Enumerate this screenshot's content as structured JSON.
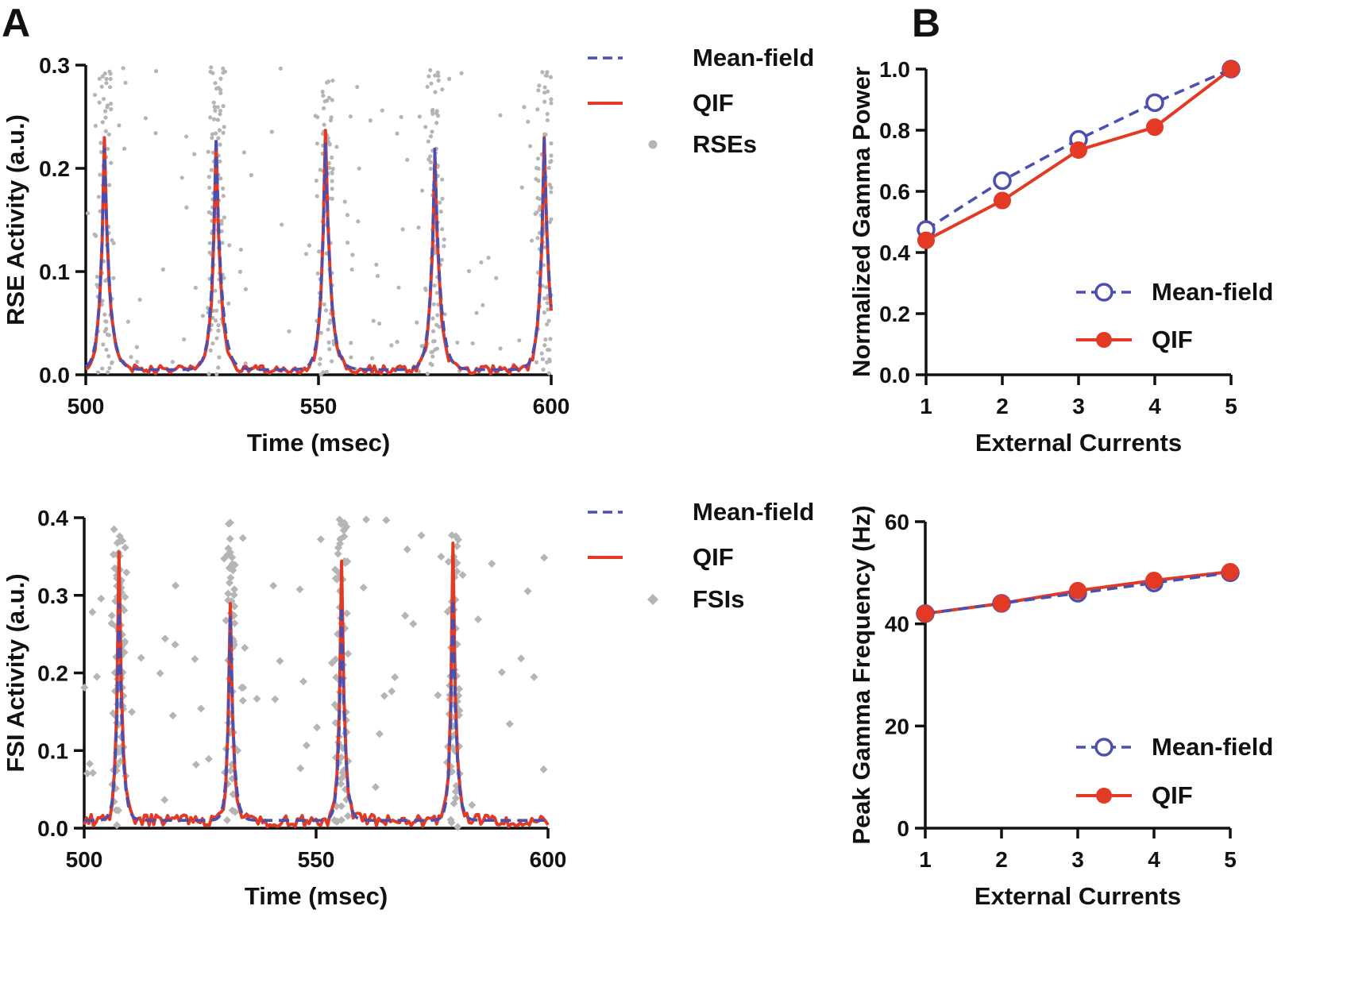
{
  "panel_labels": [
    "A",
    "B"
  ],
  "colors": {
    "meanfield": "#4A4FB0",
    "qif": "#E23A24",
    "spikes": "#B5B5B5",
    "axis": "#111111"
  },
  "chart_data": [
    {
      "id": "rse",
      "type": "line",
      "title": "",
      "xlabel": "Time (msec)",
      "ylabel": "RSE Activity (a.u.)",
      "xlim": [
        500,
        600
      ],
      "ylim": [
        0,
        0.3
      ],
      "xticks": [
        "500",
        "550",
        "600"
      ],
      "yticks": [
        "0.0",
        "0.1",
        "0.2",
        "0.3"
      ],
      "legend": [
        "Mean-field",
        "QIF",
        "RSEs"
      ],
      "legend_position": "right",
      "peaks": [
        504,
        528,
        551.5,
        575,
        598.5
      ],
      "peak_heights_meanfield": [
        0.215,
        0.225,
        0.22,
        0.215,
        0.225
      ],
      "peak_heights_qif": [
        0.225,
        0.22,
        0.235,
        0.21,
        0.225
      ],
      "baseline": 0.005,
      "spike_marker": "circle"
    },
    {
      "id": "fsi",
      "type": "line",
      "title": "",
      "xlabel": "Time (msec)",
      "ylabel": "FSI Activity (a.u.)",
      "xlim": [
        500,
        600
      ],
      "ylim": [
        0,
        0.4
      ],
      "xticks": [
        "500",
        "550",
        "600"
      ],
      "yticks": [
        "0.0",
        "0.1",
        "0.2",
        "0.3",
        "0.4"
      ],
      "legend": [
        "Mean-field",
        "QIF",
        "FSIs"
      ],
      "legend_position": "right",
      "peaks": [
        507.5,
        531.5,
        555.5,
        579.5
      ],
      "peak_heights_meanfield": [
        0.28,
        0.265,
        0.275,
        0.285
      ],
      "peak_heights_qif": [
        0.34,
        0.275,
        0.33,
        0.355
      ],
      "baseline": 0.01,
      "spike_marker": "diamond"
    },
    {
      "id": "power",
      "type": "line",
      "title": "",
      "xlabel": "External Currents",
      "ylabel": "Normalized Gamma Power",
      "x": [
        1,
        2,
        3,
        4,
        5
      ],
      "xlim": [
        1,
        5
      ],
      "ylim": [
        0,
        1.0
      ],
      "xticks": [
        "1",
        "2",
        "3",
        "4",
        "5"
      ],
      "yticks": [
        "0.0",
        "0.2",
        "0.4",
        "0.6",
        "0.8",
        "1.0"
      ],
      "series": [
        {
          "name": "Mean-field",
          "values": [
            0.475,
            0.635,
            0.77,
            0.89,
            1.0
          ]
        },
        {
          "name": "QIF",
          "values": [
            0.44,
            0.57,
            0.735,
            0.81,
            1.0
          ]
        }
      ],
      "legend_position": "bottom-right"
    },
    {
      "id": "freq",
      "type": "line",
      "title": "",
      "xlabel": "External Currents",
      "ylabel": "Peak Gamma Frequency (Hz)",
      "x": [
        1,
        2,
        3,
        4,
        5
      ],
      "xlim": [
        1,
        5
      ],
      "ylim": [
        0,
        60
      ],
      "xticks": [
        "1",
        "2",
        "3",
        "4",
        "5"
      ],
      "yticks": [
        "0",
        "20",
        "40",
        "60"
      ],
      "series": [
        {
          "name": "Mean-field",
          "values": [
            42,
            44,
            46,
            48,
            50
          ]
        },
        {
          "name": "QIF",
          "values": [
            42,
            44,
            46.5,
            48.5,
            50.2
          ]
        }
      ],
      "legend_position": "bottom-right"
    }
  ]
}
